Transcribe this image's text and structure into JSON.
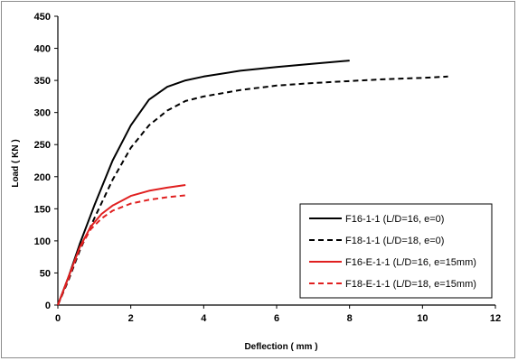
{
  "chart_data": {
    "type": "line",
    "title": "",
    "xlabel": "Deflection ( mm )",
    "ylabel": "Load ( KN )",
    "xlim": [
      0,
      12
    ],
    "ylim": [
      0,
      450
    ],
    "x_ticks": [
      "0",
      "2",
      "4",
      "6",
      "8",
      "10",
      "12"
    ],
    "y_ticks": [
      "0",
      "50",
      "100",
      "150",
      "200",
      "250",
      "300",
      "350",
      "400",
      "450"
    ],
    "grid": false,
    "legend_position": "bottom-right",
    "series": [
      {
        "name": "F16-1-1 (L/D=16, e=0)",
        "color": "#000000",
        "dash": "solid",
        "points": [
          [
            0,
            0
          ],
          [
            0.3,
            45
          ],
          [
            0.6,
            95
          ],
          [
            1.0,
            155
          ],
          [
            1.5,
            225
          ],
          [
            2.0,
            280
          ],
          [
            2.5,
            320
          ],
          [
            3.0,
            340
          ],
          [
            3.5,
            350
          ],
          [
            4.0,
            356
          ],
          [
            5.0,
            365
          ],
          [
            6.0,
            371
          ],
          [
            7.0,
            376
          ],
          [
            8.0,
            381
          ]
        ]
      },
      {
        "name": "F18-1-1 (L/D=18, e=0)",
        "color": "#000000",
        "dash": "dashed",
        "points": [
          [
            0,
            0
          ],
          [
            0.3,
            40
          ],
          [
            0.6,
            85
          ],
          [
            1.0,
            135
          ],
          [
            1.5,
            195
          ],
          [
            2.0,
            245
          ],
          [
            2.5,
            280
          ],
          [
            3.0,
            303
          ],
          [
            3.5,
            318
          ],
          [
            4.0,
            325
          ],
          [
            5.0,
            335
          ],
          [
            6.0,
            342
          ],
          [
            7.0,
            346
          ],
          [
            8.0,
            349
          ],
          [
            9.0,
            352
          ],
          [
            10.0,
            354
          ],
          [
            10.7,
            356
          ]
        ]
      },
      {
        "name": "F16-E-1-1 (L/D=16, e=15mm)",
        "color": "#e02020",
        "dash": "solid",
        "points": [
          [
            0,
            0
          ],
          [
            0.3,
            45
          ],
          [
            0.6,
            90
          ],
          [
            0.9,
            122
          ],
          [
            1.2,
            142
          ],
          [
            1.5,
            155
          ],
          [
            2.0,
            170
          ],
          [
            2.5,
            178
          ],
          [
            3.0,
            183
          ],
          [
            3.5,
            187
          ]
        ]
      },
      {
        "name": "F18-E-1-1 (L/D=18, e=15mm)",
        "color": "#e02020",
        "dash": "dashed",
        "points": [
          [
            0,
            0
          ],
          [
            0.3,
            42
          ],
          [
            0.6,
            88
          ],
          [
            0.9,
            118
          ],
          [
            1.2,
            135
          ],
          [
            1.5,
            147
          ],
          [
            2.0,
            158
          ],
          [
            2.5,
            164
          ],
          [
            3.0,
            168
          ],
          [
            3.5,
            171
          ]
        ]
      }
    ]
  }
}
